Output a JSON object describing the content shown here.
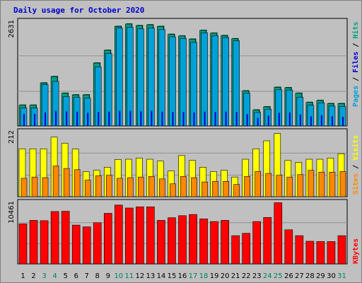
{
  "title": "Daily usage for October 2020",
  "colors": {
    "background": "#c0c0c0",
    "pages": "#0000cc",
    "files": "#00a0d8",
    "hits": "#00a080",
    "visits": "#ffff00",
    "sites": "#ff8800",
    "kbytes": "#ff0000",
    "weekend_day": "#008060",
    "grid": "#909090"
  },
  "chart_data": [
    {
      "type": "bar",
      "panel": "hits-files-pages",
      "categories": [
        "1",
        "2",
        "3",
        "4",
        "5",
        "6",
        "7",
        "8",
        "9",
        "10",
        "11",
        "12",
        "13",
        "14",
        "15",
        "16",
        "17",
        "18",
        "19",
        "20",
        "21",
        "22",
        "23",
        "24",
        "25",
        "26",
        "27",
        "28",
        "29",
        "30",
        "31"
      ],
      "weekend_days": [
        "3",
        "4",
        "10",
        "11",
        "17",
        "18",
        "24",
        "25",
        "31"
      ],
      "ymax_label": "2631",
      "ylim": [
        0,
        2631
      ],
      "right_label_parts": [
        "Pages",
        "Files",
        "Hits"
      ],
      "series": [
        {
          "name": "Hits",
          "values": [
            520,
            520,
            1080,
            1240,
            820,
            780,
            780,
            1580,
            1900,
            2500,
            2560,
            2520,
            2540,
            2500,
            2300,
            2260,
            2180,
            2400,
            2330,
            2270,
            2190,
            880,
            400,
            480,
            970,
            960,
            820,
            590,
            640,
            560,
            560
          ]
        },
        {
          "name": "Files",
          "values": [
            450,
            450,
            1040,
            1120,
            740,
            720,
            700,
            1480,
            1820,
            2460,
            2480,
            2440,
            2460,
            2420,
            2240,
            2200,
            2100,
            2340,
            2270,
            2220,
            2140,
            820,
            340,
            420,
            910,
            900,
            720,
            520,
            580,
            500,
            490
          ]
        },
        {
          "name": "Pages",
          "values": [
            300,
            300,
            340,
            380,
            370,
            360,
            330,
            350,
            360,
            380,
            380,
            370,
            380,
            360,
            350,
            350,
            340,
            360,
            350,
            360,
            350,
            300,
            200,
            260,
            330,
            340,
            290,
            240,
            270,
            240,
            230
          ]
        }
      ]
    },
    {
      "type": "bar",
      "panel": "visits-sites",
      "categories": [
        "1",
        "2",
        "3",
        "4",
        "5",
        "6",
        "7",
        "8",
        "9",
        "10",
        "11",
        "12",
        "13",
        "14",
        "15",
        "16",
        "17",
        "18",
        "19",
        "20",
        "21",
        "22",
        "23",
        "24",
        "25",
        "26",
        "27",
        "28",
        "29",
        "30",
        "31"
      ],
      "ymax_label": "212",
      "ylim": [
        0,
        212
      ],
      "right_label_parts": [
        "Sites",
        "Visits"
      ],
      "series": [
        {
          "name": "Visits",
          "values": [
            156,
            156,
            156,
            194,
            174,
            155,
            82,
            86,
            96,
            121,
            122,
            126,
            122,
            116,
            84,
            134,
            118,
            96,
            82,
            86,
            64,
            122,
            156,
            182,
            206,
            118,
            112,
            122,
            122,
            126,
            140
          ]
        },
        {
          "name": "Sites",
          "values": [
            60,
            64,
            62,
            100,
            92,
            88,
            54,
            68,
            70,
            60,
            62,
            64,
            66,
            58,
            42,
            66,
            62,
            48,
            50,
            50,
            40,
            66,
            82,
            76,
            70,
            64,
            72,
            86,
            80,
            80,
            82
          ]
        }
      ]
    },
    {
      "type": "bar",
      "panel": "kbytes",
      "categories": [
        "1",
        "2",
        "3",
        "4",
        "5",
        "6",
        "7",
        "8",
        "9",
        "10",
        "11",
        "12",
        "13",
        "14",
        "15",
        "16",
        "17",
        "18",
        "19",
        "20",
        "21",
        "22",
        "23",
        "24",
        "25",
        "26",
        "27",
        "28",
        "29",
        "30",
        "31"
      ],
      "ymax_label": "10461",
      "ylim": [
        0,
        10461
      ],
      "right_label_parts": [
        "KBytes"
      ],
      "series": [
        {
          "name": "KBytes",
          "values": [
            6800,
            7400,
            7350,
            8900,
            8950,
            6600,
            6300,
            7000,
            8600,
            10000,
            9500,
            9700,
            9700,
            7400,
            7850,
            8200,
            8400,
            7650,
            7200,
            7400,
            4800,
            5200,
            7200,
            7900,
            10400,
            5800,
            4800,
            3850,
            3800,
            3800,
            4800
          ]
        }
      ]
    }
  ]
}
